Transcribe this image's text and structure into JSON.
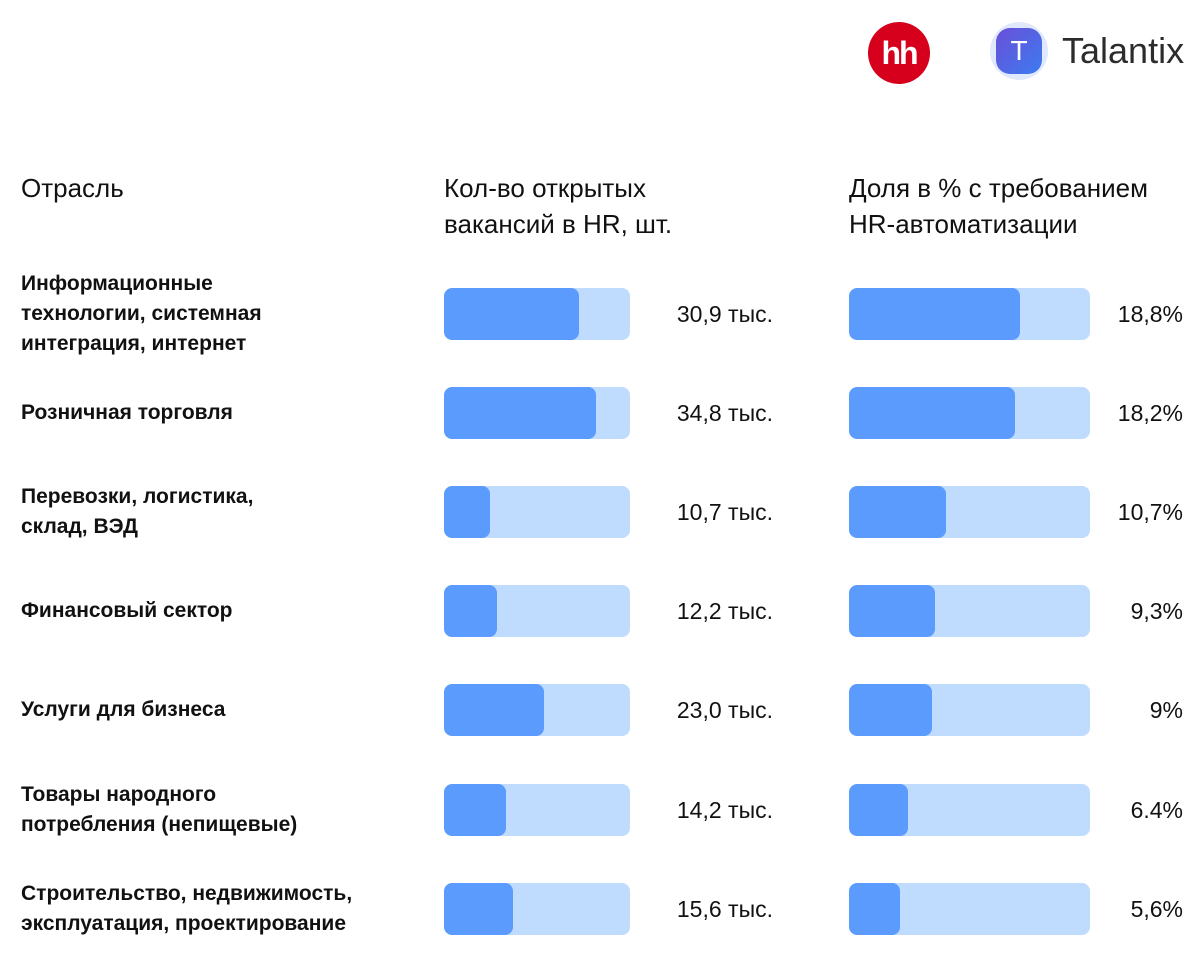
{
  "logos": {
    "hh": "hh",
    "talantix_mark": "T",
    "talantix_name": "Talantix"
  },
  "headers": {
    "industry": "Отрасль",
    "vacancies_line1": "Кол-во открытых",
    "vacancies_line2": "вакансий в HR, шт.",
    "share_line1": "Доля в % с требованием",
    "share_line2": "HR-автоматизации"
  },
  "colors": {
    "bar_fill": "#5a9bfd",
    "bar_track": "#bfdbfe",
    "hh_red": "#d6001c"
  },
  "rows": [
    {
      "label": [
        "Информационные",
        "технологии, системная",
        "интеграция, интернет"
      ],
      "vacancies": "30,9 тыс.",
      "share": "18,8%"
    },
    {
      "label": [
        "Розничная торговля"
      ],
      "vacancies": "34,8 тыс.",
      "share": "18,2%"
    },
    {
      "label": [
        "Перевозки, логистика,",
        "склад, ВЭД"
      ],
      "vacancies": "10,7 тыс.",
      "share": "10,7%"
    },
    {
      "label": [
        "Финансовый сектор"
      ],
      "vacancies": "12,2 тыс.",
      "share": "9,3%"
    },
    {
      "label": [
        "Услуги для бизнеса"
      ],
      "vacancies": "23,0 тыс.",
      "share": "9%"
    },
    {
      "label": [
        "Товары народного",
        "потребления (непищевые)"
      ],
      "vacancies": "14,2 тыс.",
      "share": "6.4%"
    },
    {
      "label": [
        "Строительство, недвижимость,",
        "эксплуатация, проектирование"
      ],
      "vacancies": "15,6 тыс.",
      "share": "5,6%"
    }
  ],
  "chart_data": [
    {
      "type": "bar",
      "orientation": "horizontal",
      "title": "Кол-во открытых вакансий в HR, шт.",
      "categories": [
        "Информационные технологии, системная интеграция, интернет",
        "Розничная торговля",
        "Перевозки, логистика, склад, ВЭД",
        "Финансовый сектор",
        "Услуги для бизнеса",
        "Товары народного потребления (непищевые)",
        "Строительство, недвижимость, эксплуатация, проектирование"
      ],
      "values": [
        30.9,
        34.8,
        10.7,
        12.2,
        23.0,
        14.2,
        15.6
      ],
      "unit": "тыс.",
      "fill_fraction": [
        0.726,
        0.817,
        0.247,
        0.285,
        0.538,
        0.333,
        0.371
      ]
    },
    {
      "type": "bar",
      "orientation": "horizontal",
      "title": "Доля в % с требованием HR-автоматизации",
      "categories": [
        "Информационные технологии, системная интеграция, интернет",
        "Розничная торговля",
        "Перевозки, логистика, склад, ВЭД",
        "Финансовый сектор",
        "Услуги для бизнеса",
        "Товары народного потребления (непищевые)",
        "Строительство, недвижимость, эксплуатация, проектирование"
      ],
      "values": [
        18.8,
        18.2,
        10.7,
        9.3,
        9.0,
        6.4,
        5.6
      ],
      "unit": "%",
      "fill_fraction": [
        0.71,
        0.689,
        0.402,
        0.357,
        0.344,
        0.245,
        0.212
      ]
    }
  ]
}
